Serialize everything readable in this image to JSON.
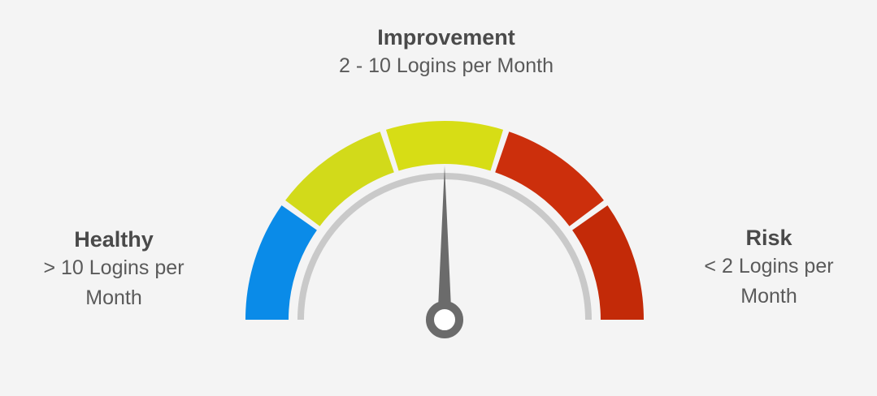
{
  "labels": {
    "improvement": {
      "title": "Improvement",
      "description": "2 - 10 Logins per Month"
    },
    "healthy": {
      "title": "Healthy",
      "description_line1": "> 10 Logins per",
      "description_line2": "Month"
    },
    "risk": {
      "title": "Risk",
      "description_line1": "< 2 Logins per",
      "description_line2": "Month"
    }
  },
  "gauge": {
    "segments": [
      {
        "color": "#0a8be8"
      },
      {
        "color": "#d2da1a"
      },
      {
        "color": "#d7dd15"
      },
      {
        "color": "#cc2f0c"
      },
      {
        "color": "#c32a08"
      }
    ],
    "needle_color": "#6b6b6b",
    "track_color": "#c9c9c9"
  }
}
